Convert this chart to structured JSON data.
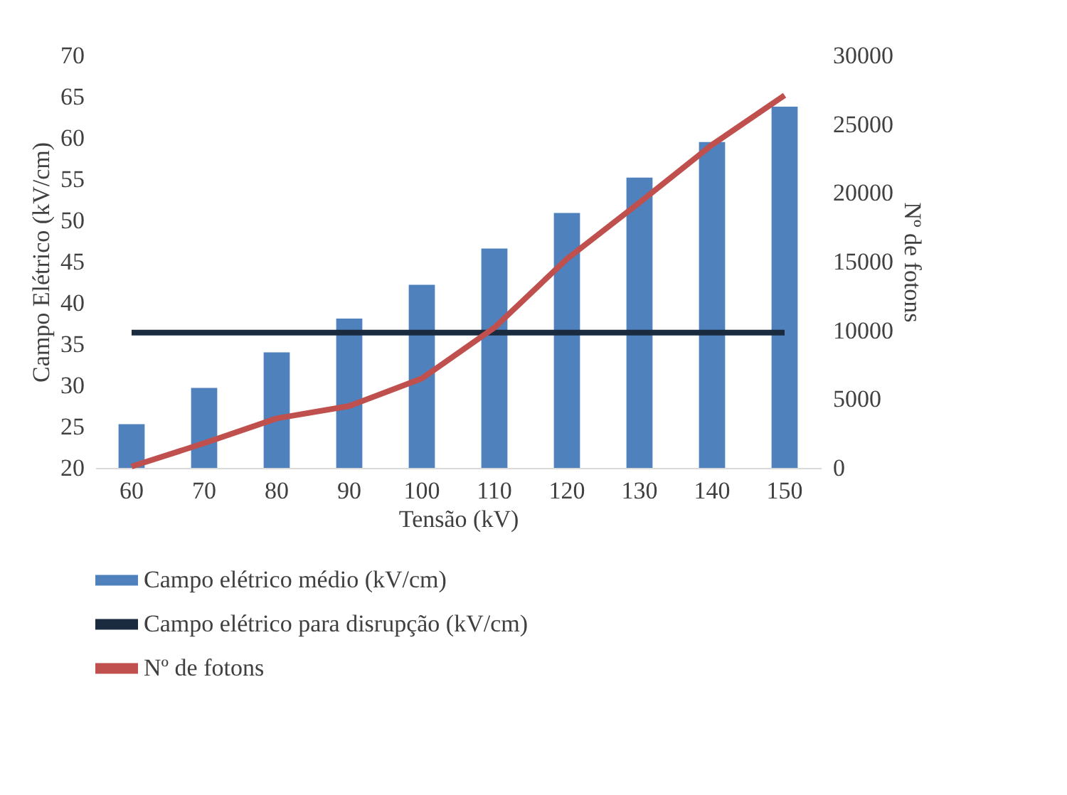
{
  "chart_data": {
    "type": "bar",
    "xlabel": "Tensão (kV)",
    "ylabel": "Campo Elétrico (kV/cm)",
    "y2label": "Nº de fotons",
    "categories": [
      "60",
      "70",
      "80",
      "90",
      "100",
      "110",
      "120",
      "130",
      "140",
      "150"
    ],
    "series": [
      {
        "name": "Campo elétrico médio (kV/cm)",
        "color": "#4f81bd",
        "values": [
          25.3,
          29.7,
          34.0,
          38.1,
          42.2,
          46.6,
          50.9,
          55.2,
          59.5,
          63.8
        ]
      },
      {
        "name": "Campo elétrico para disrupção  (kV/cm)",
        "type": "line",
        "color": "#1a2b3f",
        "values": [
          36.4,
          36.4,
          36.4,
          36.4,
          36.4,
          36.4,
          36.4,
          36.4,
          36.4,
          36.4
        ]
      },
      {
        "name": "Nº de fotons",
        "type": "line",
        "axis": "y2",
        "color": "#c0504d",
        "values": [
          100,
          1800,
          3600,
          4500,
          6500,
          10200,
          15200,
          19300,
          23500,
          27100
        ]
      }
    ],
    "ylim": [
      20,
      70
    ],
    "yticks": [
      20,
      25,
      30,
      35,
      40,
      45,
      50,
      55,
      60,
      65,
      70
    ],
    "y2lim": [
      0,
      30000
    ],
    "y2ticks": [
      0,
      5000,
      10000,
      15000,
      20000,
      25000,
      30000
    ],
    "grid": false,
    "legend": "bottom"
  }
}
